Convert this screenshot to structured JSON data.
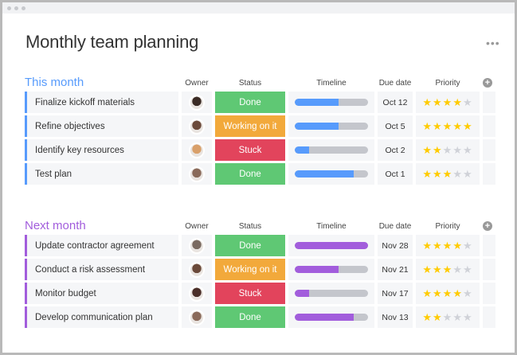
{
  "title": "Monthly team planning",
  "more_icon": "•••",
  "columns": {
    "owner": "Owner",
    "status": "Status",
    "timeline": "Timeline",
    "due": "Due date",
    "priority": "Priority"
  },
  "colors": {
    "done": "#5fc874",
    "working": "#f2a93b",
    "stuck": "#e2445c",
    "this_month": "#579bfc",
    "next_month": "#a25ddc",
    "star": "#ffcb00",
    "star_empty": "#d0d2d8"
  },
  "groups": [
    {
      "title": "This month",
      "color": "#579bfc",
      "rows": [
        {
          "name": "Finalize kickoff materials",
          "avatar": "#3b2b25",
          "status": "Done",
          "status_color": "#5fc874",
          "timeline": 0.6,
          "due": "Oct 12",
          "priority": 4
        },
        {
          "name": "Refine objectives",
          "avatar": "#6b4a3a",
          "status": "Working on it",
          "status_color": "#f2a93b",
          "timeline": 0.6,
          "due": "Oct 5",
          "priority": 5
        },
        {
          "name": "Identify key resources",
          "avatar": "#d9a06a",
          "status": "Stuck",
          "status_color": "#e2445c",
          "timeline": 0.2,
          "due": "Oct 2",
          "priority": 2
        },
        {
          "name": "Test plan",
          "avatar": "#8a6a5a",
          "status": "Done",
          "status_color": "#5fc874",
          "timeline": 0.8,
          "due": "Oct 1",
          "priority": 3
        }
      ]
    },
    {
      "title": "Next month",
      "color": "#a25ddc",
      "rows": [
        {
          "name": "Update contractor agreement",
          "avatar": "#7a6a60",
          "status": "Done",
          "status_color": "#5fc874",
          "timeline": 1.0,
          "due": "Nov 28",
          "priority": 4
        },
        {
          "name": "Conduct a risk assessment",
          "avatar": "#6b4a3a",
          "status": "Working on it",
          "status_color": "#f2a93b",
          "timeline": 0.6,
          "due": "Nov  21",
          "priority": 3
        },
        {
          "name": "Monitor budget",
          "avatar": "#4a2e28",
          "status": "Stuck",
          "status_color": "#e2445c",
          "timeline": 0.2,
          "due": "Nov  17",
          "priority": 4
        },
        {
          "name": "Develop communication plan",
          "avatar": "#8a6a5a",
          "status": "Done",
          "status_color": "#5fc874",
          "timeline": 0.8,
          "due": "Nov  13",
          "priority": 2
        }
      ]
    }
  ]
}
